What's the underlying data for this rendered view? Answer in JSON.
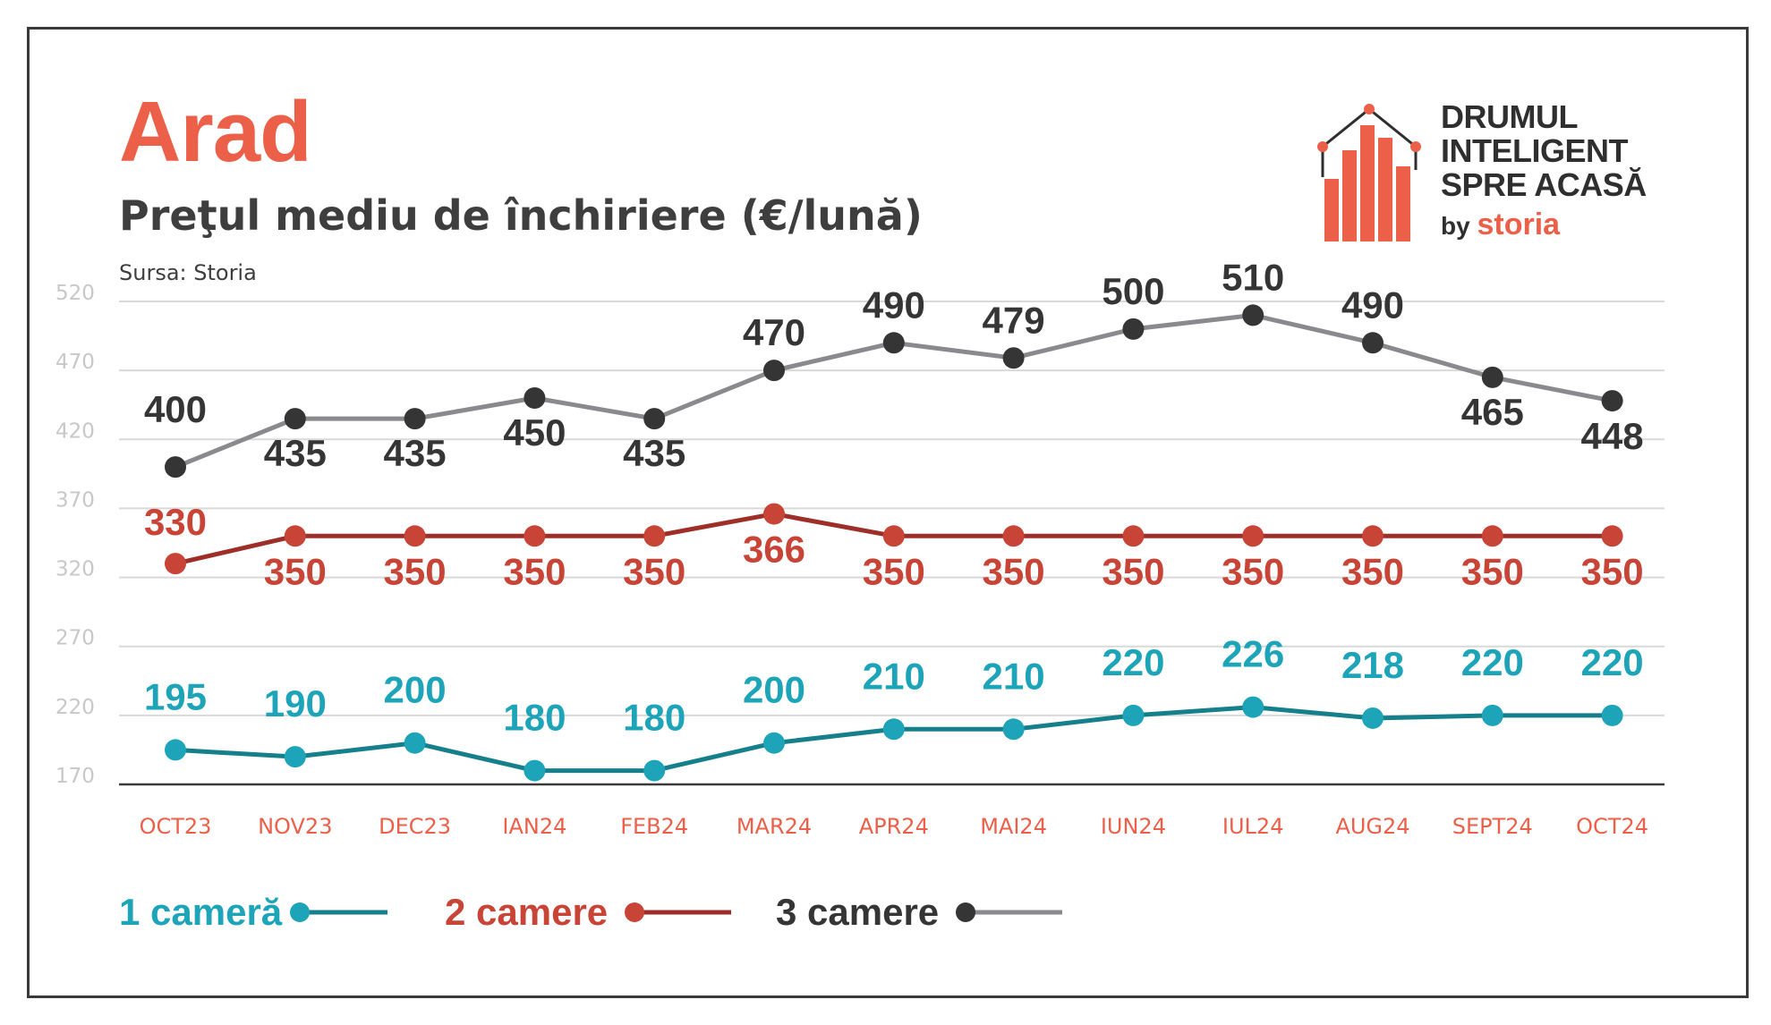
{
  "header": {
    "title": "Arad",
    "subtitle": "Preţul mediu de închiriere (€/lună)",
    "source": "Sursa: Storia"
  },
  "logo": {
    "line1": "DRUMUL",
    "line2": "INTELIGENT",
    "line3": "SPRE ACASĂ",
    "by": "by",
    "brand": "storia",
    "icon": "house-bar-chart-icon"
  },
  "colors": {
    "accent": "#ec604a",
    "one_room": "#1ea4b8",
    "one_room_line": "#167f8c",
    "two_rooms": "#c84436",
    "two_rooms_line": "#9e2e28",
    "three_rooms": "#353535",
    "three_rooms_line": "#8a8a8e",
    "grid": "#d9d9d9",
    "axis": "#3a3a3a",
    "tick_y": "#c8c8c8"
  },
  "chart_data": {
    "type": "line",
    "title": "Preţul mediu de închiriere (€/lună)",
    "categories": [
      "OCT23",
      "NOV23",
      "DEC23",
      "IAN24",
      "FEB24",
      "MAR24",
      "APR24",
      "MAI24",
      "IUN24",
      "IUL24",
      "AUG24",
      "SEPT24",
      "OCT24"
    ],
    "y_ticks": [
      520,
      470,
      420,
      370,
      320,
      270,
      220,
      170
    ],
    "ylim": [
      170,
      520
    ],
    "grid": true,
    "legend_position": "bottom-left",
    "series": [
      {
        "name": "1 cameră",
        "values": [
          195,
          190,
          200,
          180,
          180,
          200,
          210,
          210,
          220,
          226,
          218,
          220,
          220
        ]
      },
      {
        "name": "2 camere",
        "values": [
          330,
          350,
          350,
          350,
          350,
          366,
          350,
          350,
          350,
          350,
          350,
          350,
          350
        ]
      },
      {
        "name": "3 camere",
        "values": [
          400,
          435,
          435,
          450,
          435,
          470,
          490,
          479,
          500,
          510,
          490,
          465,
          448
        ]
      }
    ]
  }
}
